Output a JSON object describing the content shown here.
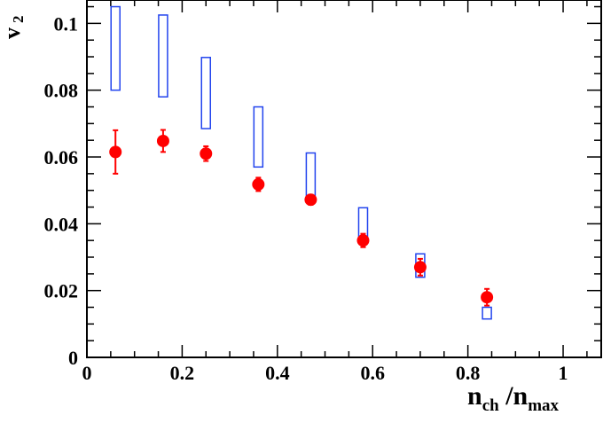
{
  "chart_data": {
    "type": "scatter",
    "title": "",
    "xlabel": {
      "main": "n",
      "sub1": "ch",
      "sep": " /n",
      "sub2": "max"
    },
    "ylabel": {
      "main": "v",
      "sub": "2"
    },
    "xlim": [
      0,
      1.08
    ],
    "ylim": [
      0,
      0.107
    ],
    "x_ticks": [
      0,
      0.2,
      0.4,
      0.6,
      0.8,
      1
    ],
    "x_tick_labels": [
      "0",
      "0.2",
      "0.4",
      "0.6",
      "0.8",
      "1"
    ],
    "y_ticks": [
      0,
      0.02,
      0.04,
      0.06,
      0.08,
      0.1
    ],
    "y_tick_labels": [
      "0",
      "0.02",
      "0.04",
      "0.06",
      "0.08",
      "0.1"
    ],
    "grid": false,
    "series": [
      {
        "marker": "filled-circle",
        "color": "#ff0000",
        "points": [
          {
            "x": 0.06,
            "y": 0.0615,
            "err_low": 0.0065,
            "err_high": 0.0065
          },
          {
            "x": 0.16,
            "y": 0.0648,
            "err_low": 0.0033,
            "err_high": 0.0033
          },
          {
            "x": 0.25,
            "y": 0.061,
            "err_low": 0.0022,
            "err_high": 0.0022
          },
          {
            "x": 0.36,
            "y": 0.0518,
            "err_low": 0.002,
            "err_high": 0.002
          },
          {
            "x": 0.47,
            "y": 0.0472,
            "err_low": 0.0015,
            "err_high": 0.0015
          },
          {
            "x": 0.58,
            "y": 0.035,
            "err_low": 0.002,
            "err_high": 0.002
          },
          {
            "x": 0.7,
            "y": 0.027,
            "err_low": 0.0025,
            "err_high": 0.0025
          },
          {
            "x": 0.84,
            "y": 0.018,
            "err_low": 0.0025,
            "err_high": 0.0025
          }
        ]
      },
      {
        "marker": "open-box",
        "color": "#2244ee",
        "boxes": [
          {
            "x": 0.06,
            "low": 0.08,
            "high": 0.105
          },
          {
            "x": 0.16,
            "low": 0.078,
            "high": 0.1025
          },
          {
            "x": 0.25,
            "low": 0.0685,
            "high": 0.0898
          },
          {
            "x": 0.36,
            "low": 0.057,
            "high": 0.075
          },
          {
            "x": 0.47,
            "low": 0.0465,
            "high": 0.0612
          },
          {
            "x": 0.58,
            "low": 0.0345,
            "high": 0.0448
          },
          {
            "x": 0.7,
            "low": 0.024,
            "high": 0.031
          },
          {
            "x": 0.84,
            "low": 0.0115,
            "high": 0.015
          }
        ]
      }
    ]
  }
}
